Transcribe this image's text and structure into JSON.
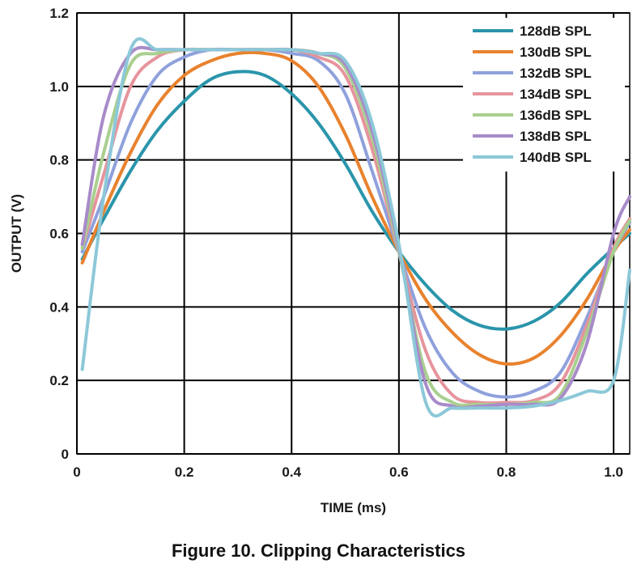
{
  "caption": "Figure 10. Clipping Characteristics",
  "chart_data": {
    "type": "line",
    "xlabel": "TIME (ms)",
    "ylabel": "OUTPUT (V)",
    "xlim": [
      0,
      1.03
    ],
    "ylim": [
      0,
      1.2
    ],
    "xticks": [
      "0",
      "0.2",
      "0.4",
      "0.6",
      "0.8",
      "1.0"
    ],
    "yticks": [
      "0",
      "0.2",
      "0.4",
      "0.6",
      "0.8",
      "1.0",
      "1.2"
    ],
    "grid": true,
    "legend_position": "top-right",
    "x": [
      0.01,
      0.05,
      0.1,
      0.15,
      0.2,
      0.25,
      0.3,
      0.35,
      0.4,
      0.45,
      0.5,
      0.55,
      0.6,
      0.65,
      0.7,
      0.75,
      0.8,
      0.85,
      0.9,
      0.95,
      1.0,
      1.03
    ],
    "series": [
      {
        "name": "128dB SPL",
        "color": "#2a95ab",
        "values": [
          0.53,
          0.64,
          0.77,
          0.88,
          0.96,
          1.02,
          1.04,
          1.03,
          0.98,
          0.9,
          0.79,
          0.66,
          0.55,
          0.46,
          0.39,
          0.35,
          0.34,
          0.36,
          0.41,
          0.49,
          0.56,
          0.6
        ]
      },
      {
        "name": "130dB SPL",
        "color": "#e8822e",
        "values": [
          0.52,
          0.66,
          0.82,
          0.95,
          1.03,
          1.07,
          1.09,
          1.09,
          1.07,
          1.0,
          0.87,
          0.7,
          0.55,
          0.42,
          0.33,
          0.27,
          0.245,
          0.26,
          0.32,
          0.42,
          0.55,
          0.61
        ]
      },
      {
        "name": "132dB SPL",
        "color": "#8fa1dc",
        "values": [
          0.55,
          0.7,
          0.9,
          1.03,
          1.08,
          1.1,
          1.1,
          1.1,
          1.09,
          1.07,
          0.98,
          0.77,
          0.55,
          0.34,
          0.22,
          0.17,
          0.155,
          0.17,
          0.22,
          0.37,
          0.55,
          0.63
        ]
      },
      {
        "name": "134dB SPL",
        "color": "#e6949c",
        "values": [
          0.56,
          0.76,
          1.0,
          1.08,
          1.1,
          1.1,
          1.1,
          1.1,
          1.1,
          1.08,
          1.03,
          0.83,
          0.55,
          0.28,
          0.16,
          0.14,
          0.14,
          0.145,
          0.19,
          0.35,
          0.56,
          0.64
        ]
      },
      {
        "name": "136dB SPL",
        "color": "#a9cf8e",
        "values": [
          0.56,
          0.82,
          1.06,
          1.09,
          1.1,
          1.1,
          1.1,
          1.1,
          1.1,
          1.09,
          1.05,
          0.86,
          0.55,
          0.22,
          0.14,
          0.135,
          0.135,
          0.14,
          0.16,
          0.33,
          0.55,
          0.635
        ]
      },
      {
        "name": "138dB SPL",
        "color": "#a88bc9",
        "values": [
          0.57,
          0.92,
          1.09,
          1.1,
          1.1,
          1.1,
          1.1,
          1.1,
          1.1,
          1.09,
          1.06,
          0.88,
          0.56,
          0.19,
          0.13,
          0.13,
          0.135,
          0.135,
          0.15,
          0.3,
          0.6,
          0.7
        ]
      },
      {
        "name": "140dB SPL",
        "color": "#8cc8d8",
        "values": [
          0.23,
          0.7,
          1.1,
          1.1,
          1.1,
          1.1,
          1.1,
          1.1,
          1.1,
          1.09,
          1.07,
          0.9,
          0.57,
          0.14,
          0.125,
          0.125,
          0.125,
          0.13,
          0.145,
          0.17,
          0.2,
          0.5
        ]
      }
    ]
  }
}
